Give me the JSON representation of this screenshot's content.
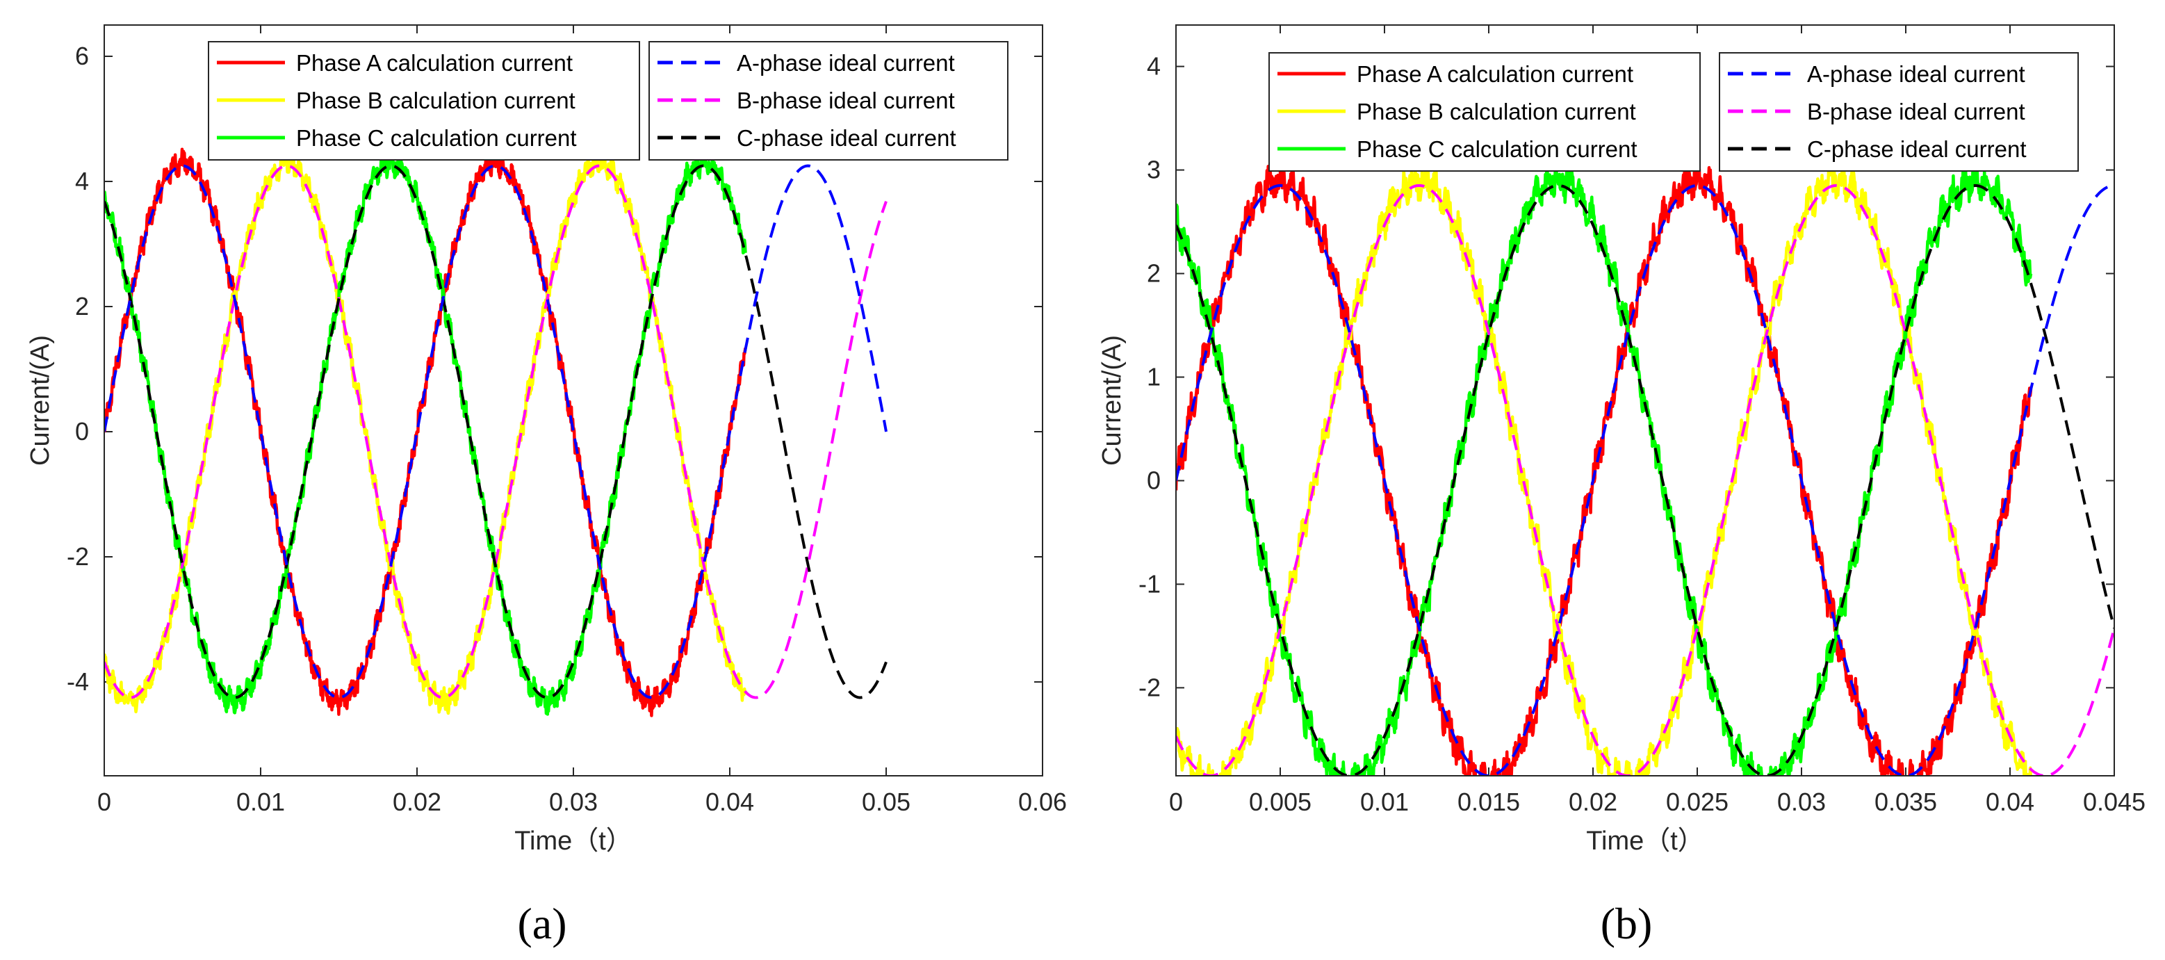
{
  "colors": {
    "phase_a_calc": "#ff0000",
    "phase_b_calc": "#ffff00",
    "phase_c_calc": "#00ff00",
    "a_ideal": "#0000ff",
    "b_ideal": "#ff00ff",
    "c_ideal": "#000000"
  },
  "chart_data": [
    {
      "panel": "(a)",
      "type": "line",
      "xlabel": "Time（t）",
      "ylabel": "Current/(A)",
      "xlim": [
        0,
        0.06
      ],
      "ylim": [
        -5.5,
        6.5
      ],
      "xticks": [
        0,
        0.01,
        0.02,
        0.03,
        0.04,
        0.05,
        0.06
      ],
      "xtick_labels": [
        "0",
        "0.01",
        "0.02",
        "0.03",
        "0.04",
        "0.05",
        "0.06"
      ],
      "yticks": [
        -4,
        -2,
        0,
        2,
        4,
        6
      ],
      "ytick_labels": [
        "-4",
        "-2",
        "0",
        "2",
        "4",
        "6"
      ],
      "legend_placement": "top-center",
      "model": {
        "frequency_hz": 50,
        "amplitude_ideal": 4.25,
        "amplitude_calc": 4.3,
        "noise": 0.15
      },
      "series": [
        {
          "name": "Phase A calculation current",
          "color": "phase_a_calc",
          "style": "solid",
          "phase_deg": 0,
          "x_range": [
            0,
            0.041
          ]
        },
        {
          "name": "Phase B calculation current",
          "color": "phase_b_calc",
          "style": "solid",
          "phase_deg": -120,
          "x_range": [
            0,
            0.041
          ]
        },
        {
          "name": "Phase C calculation current",
          "color": "phase_c_calc",
          "style": "solid",
          "phase_deg": 120,
          "x_range": [
            0,
            0.041
          ]
        },
        {
          "name": "A-phase ideal current",
          "color": "a_ideal",
          "style": "dashed",
          "phase_deg": 0,
          "x_range": [
            0,
            0.05
          ]
        },
        {
          "name": "B-phase ideal current",
          "color": "b_ideal",
          "style": "dashed",
          "phase_deg": -120,
          "x_range": [
            0,
            0.05
          ]
        },
        {
          "name": "C-phase ideal current",
          "color": "c_ideal",
          "style": "dashed",
          "phase_deg": 120,
          "x_range": [
            0,
            0.05
          ]
        }
      ]
    },
    {
      "panel": "(b)",
      "type": "line",
      "xlabel": "Time（t）",
      "ylabel": "Current/(A)",
      "xlim": [
        0,
        0.045
      ],
      "ylim": [
        -2.85,
        4.4
      ],
      "xticks": [
        0,
        0.005,
        0.01,
        0.015,
        0.02,
        0.025,
        0.03,
        0.035,
        0.04,
        0.045
      ],
      "xtick_labels": [
        "0",
        "0.005",
        "0.01",
        "0.015",
        "0.02",
        "0.025",
        "0.03",
        "0.035",
        "0.04",
        "0.045"
      ],
      "yticks": [
        -2,
        -1,
        0,
        1,
        2,
        3,
        4
      ],
      "ytick_labels": [
        "-2",
        "-1",
        "0",
        "1",
        "2",
        "3",
        "4"
      ],
      "legend_placement": "top-center",
      "model": {
        "frequency_hz": 50,
        "amplitude_ideal": 2.85,
        "amplitude_calc": 2.9,
        "noise": 0.13
      },
      "series": [
        {
          "name": "Phase A calculation current",
          "color": "phase_a_calc",
          "style": "solid",
          "phase_deg": 0,
          "x_range": [
            0,
            0.041
          ]
        },
        {
          "name": "Phase B calculation current",
          "color": "phase_b_calc",
          "style": "solid",
          "phase_deg": -120,
          "x_range": [
            0,
            0.041
          ]
        },
        {
          "name": "Phase C calculation current",
          "color": "phase_c_calc",
          "style": "solid",
          "phase_deg": 120,
          "x_range": [
            0,
            0.041
          ]
        },
        {
          "name": "A-phase ideal current",
          "color": "a_ideal",
          "style": "dashed",
          "phase_deg": 0,
          "x_range": [
            0,
            0.045
          ]
        },
        {
          "name": "B-phase ideal current",
          "color": "b_ideal",
          "style": "dashed",
          "phase_deg": -120,
          "x_range": [
            0,
            0.045
          ]
        },
        {
          "name": "C-phase ideal current",
          "color": "c_ideal",
          "style": "dashed",
          "phase_deg": 120,
          "x_range": [
            0,
            0.045
          ]
        }
      ]
    }
  ]
}
